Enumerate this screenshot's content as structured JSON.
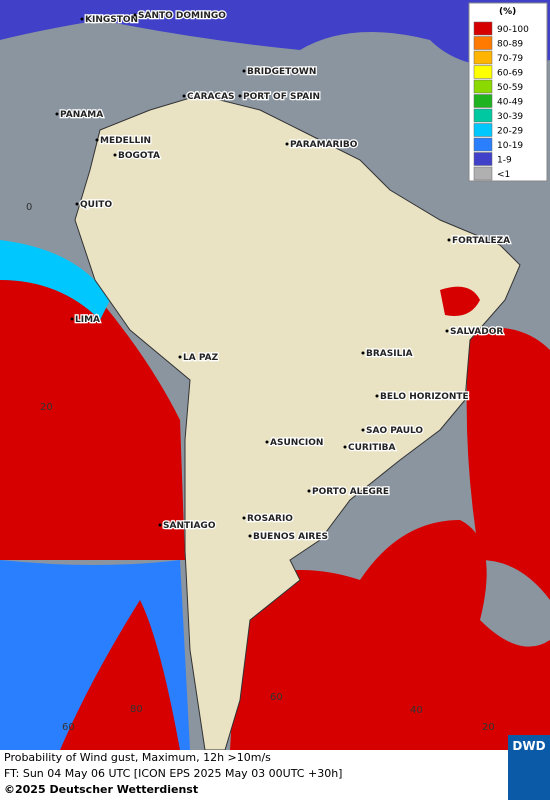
{
  "map": {
    "legend": {
      "title": "(%)",
      "entries": [
        {
          "label": "90-100",
          "color": "#d60000"
        },
        {
          "label": "80-89",
          "color": "#ff7a00"
        },
        {
          "label": "70-79",
          "color": "#ffb400"
        },
        {
          "label": "60-69",
          "color": "#ffff00"
        },
        {
          "label": "50-59",
          "color": "#8cd900"
        },
        {
          "label": "40-49",
          "color": "#1fb31f"
        },
        {
          "label": "30-39",
          "color": "#00c8a0"
        },
        {
          "label": "20-29",
          "color": "#00c8ff"
        },
        {
          "label": "10-19",
          "color": "#2a7fff"
        },
        {
          "label": "1-9",
          "color": "#4040c8"
        },
        {
          "label": "<1",
          "color": "#b0b0b0"
        }
      ]
    },
    "cities": [
      "KINGSTON",
      "SANTO DOMINGO",
      "BRIDGETOWN",
      "CARACAS",
      "PORT OF SPAIN",
      "PANAMA",
      "MEDELLIN",
      "BOGOTA",
      "PARAMARIBO",
      "QUITO",
      "FORTALEZA",
      "LIMA",
      "SALVADOR",
      "LA PAZ",
      "BRASILIA",
      "BELO HORIZONTE",
      "ASUNCION",
      "SAO PAULO",
      "CURITIBA",
      "PORTO ALEGRE",
      "ROSARIO",
      "SANTIAGO",
      "BUENOS AIRES"
    ],
    "grid_labels": [
      "0",
      "20",
      "60",
      "80",
      "60",
      "40",
      "20"
    ],
    "caption": {
      "line1": "Probability of Wind gust, Maximum, 12h >10m/s",
      "line2": "FT: Sun 04 May 06 UTC [ICON EPS 2025 May 03 00UTC +30h]",
      "line3": "©2025 Deutscher Wetterdienst"
    },
    "logo": "DWD"
  }
}
